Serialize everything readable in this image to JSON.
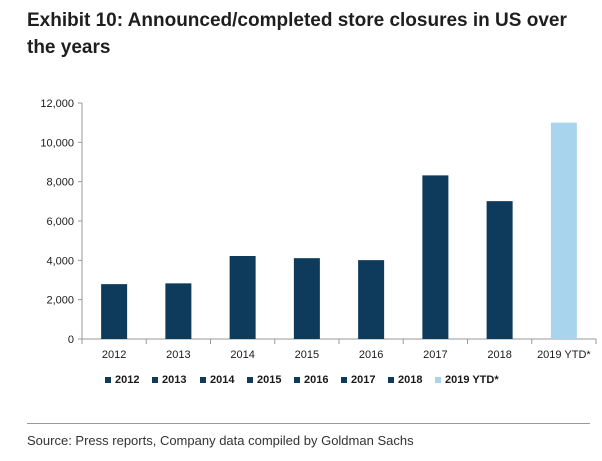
{
  "title": "Exhibit 10: Announced/completed store closures in US over the years",
  "source": "Source: Press reports, Company data compiled by Goldman Sachs",
  "colors": {
    "bar_dark": "#0e3a5c",
    "bar_light": "#a8d4ee",
    "axis": "#9a9a9a"
  },
  "chart_data": {
    "type": "bar",
    "title": "Exhibit 10: Announced/completed store closures in US over the years",
    "xlabel": "",
    "ylabel": "",
    "categories": [
      "2012",
      "2013",
      "2014",
      "2015",
      "2016",
      "2017",
      "2018",
      "2019 YTD*"
    ],
    "values": [
      2790,
      2830,
      4220,
      4110,
      4010,
      8320,
      7010,
      11000
    ],
    "ylim": [
      0,
      12000
    ],
    "yticks": [
      0,
      2000,
      4000,
      6000,
      8000,
      10000,
      12000
    ],
    "ytick_labels": [
      "0",
      "2,000",
      "4,000",
      "6,000",
      "8,000",
      "10,000",
      "12,000"
    ],
    "grid": false,
    "legend_placement": "bottom",
    "legend": [
      "2012",
      "2013",
      "2014",
      "2015",
      "2016",
      "2017",
      "2018",
      "2019 YTD*"
    ],
    "bar_colors": [
      "#0e3a5c",
      "#0e3a5c",
      "#0e3a5c",
      "#0e3a5c",
      "#0e3a5c",
      "#0e3a5c",
      "#0e3a5c",
      "#a8d4ee"
    ]
  }
}
